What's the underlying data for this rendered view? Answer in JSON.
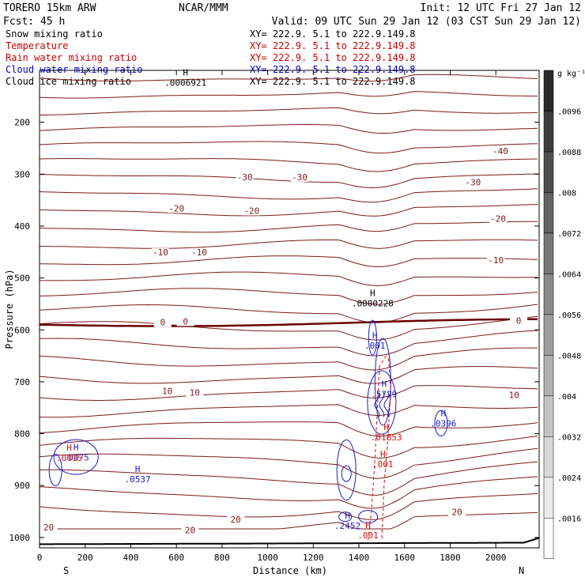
{
  "header": {
    "model": "TORERO  15km ARW",
    "center": "NCAR/MMM",
    "init": "Init: 12 UTC Fri 27 Jan 12",
    "fcst": "Fcst:   45 h",
    "valid": "Valid: 09 UTC Sun 29 Jan 12 (03 CST Sun 29 Jan 12)"
  },
  "legend": [
    {
      "name": "Snow mixing ratio",
      "xy": "XY= 222.9.  5.1 to 222.9.149.8",
      "color": "#000000"
    },
    {
      "name": "Temperature",
      "xy": "XY= 222.9.  5.1 to 222.9.149.8",
      "color": "#cc0000"
    },
    {
      "name": "Rain water mixing ratio",
      "xy": "XY= 222.9.  5.1 to 222.9.149.8",
      "color": "#cc0000"
    },
    {
      "name": "Cloud water mixing ratio",
      "xy": "XY= 222.9.  5.1 to 222.9.149.8",
      "color": "#0000cc"
    },
    {
      "name": "Cloud ice mixing ratio",
      "xy": "XY= 222.9.  5.1 to 222.9.149.8",
      "color": "#000000"
    }
  ],
  "colors": {
    "temperature": "#7a1a1a",
    "zero_isotherm": "#6a0000",
    "cloud_water": "#1a1acc",
    "rain": "#dd1111",
    "terrain": "#000000"
  },
  "chart_data": {
    "type": "cross-section",
    "xlabel": "Distance (km)",
    "ylabel": "Pressure (hPa)",
    "x_ticks": [
      0,
      200,
      400,
      600,
      800,
      1000,
      1200,
      1400,
      1600,
      1800,
      2000
    ],
    "xlim": [
      0,
      2190
    ],
    "y_ticks": [
      200,
      300,
      400,
      500,
      600,
      700,
      800,
      900,
      1000
    ],
    "ylim": [
      1020,
      100
    ],
    "x_end_labels": {
      "left": "S",
      "right": "N"
    },
    "temperature_labels": [
      {
        "text": "-40",
        "x": 2020,
        "p": 260
      },
      {
        "text": "-30",
        "x": 900,
        "p": 310
      },
      {
        "text": "-30",
        "x": 1140,
        "p": 310
      },
      {
        "text": "-30",
        "x": 1900,
        "p": 320
      },
      {
        "text": "-20",
        "x": 600,
        "p": 370
      },
      {
        "text": "-20",
        "x": 930,
        "p": 375
      },
      {
        "text": "-20",
        "x": 2010,
        "p": 390
      },
      {
        "text": "-10",
        "x": 530,
        "p": 455
      },
      {
        "text": "-10",
        "x": 700,
        "p": 455
      },
      {
        "text": "-10",
        "x": 2000,
        "p": 470
      },
      {
        "text": "0",
        "x": 540,
        "p": 590
      },
      {
        "text": "0",
        "x": 640,
        "p": 588
      },
      {
        "text": "0",
        "x": 2100,
        "p": 587
      },
      {
        "text": "10",
        "x": 560,
        "p": 722
      },
      {
        "text": "10",
        "x": 680,
        "p": 725
      },
      {
        "text": "10",
        "x": 2080,
        "p": 730
      },
      {
        "text": "20",
        "x": 40,
        "p": 985
      },
      {
        "text": "20",
        "x": 660,
        "p": 990
      },
      {
        "text": "20",
        "x": 860,
        "p": 970
      },
      {
        "text": "20",
        "x": 1830,
        "p": 955
      }
    ],
    "maxima": [
      {
        "label": ".0006921",
        "x": 640,
        "p": 128,
        "color": "black"
      },
      {
        "label": ".0000228",
        "x": 1460,
        "p": 553,
        "color": "black"
      },
      {
        "label": ".001",
        "x": 1470,
        "p": 635,
        "color": "blue"
      },
      {
        "label": ".5729",
        "x": 1510,
        "p": 728,
        "color": "blue"
      },
      {
        "label": ".0396",
        "x": 1770,
        "p": 785,
        "color": "blue"
      },
      {
        "label": ".0475",
        "x": 160,
        "p": 850,
        "color": "blue"
      },
      {
        "label": ".0537",
        "x": 430,
        "p": 892,
        "color": "blue"
      },
      {
        "label": ".2452",
        "x": 1350,
        "p": 982,
        "color": "blue"
      },
      {
        "label": ".01853",
        "x": 1520,
        "p": 811,
        "color": "red"
      },
      {
        "label": ".001",
        "x": 1505,
        "p": 863,
        "color": "red"
      },
      {
        "label": ".001",
        "x": 1440,
        "p": 1000,
        "color": "red"
      },
      {
        "label": ".0015",
        "x": 130,
        "p": 851,
        "color": "red"
      }
    ],
    "colorbar": {
      "unit": "g kg⁻¹",
      "ticks": [
        ".0096",
        ".0088",
        ".008",
        ".0072",
        ".0064",
        ".0056",
        ".0048",
        ".004",
        ".0032",
        ".0024",
        ".0016"
      ]
    }
  }
}
